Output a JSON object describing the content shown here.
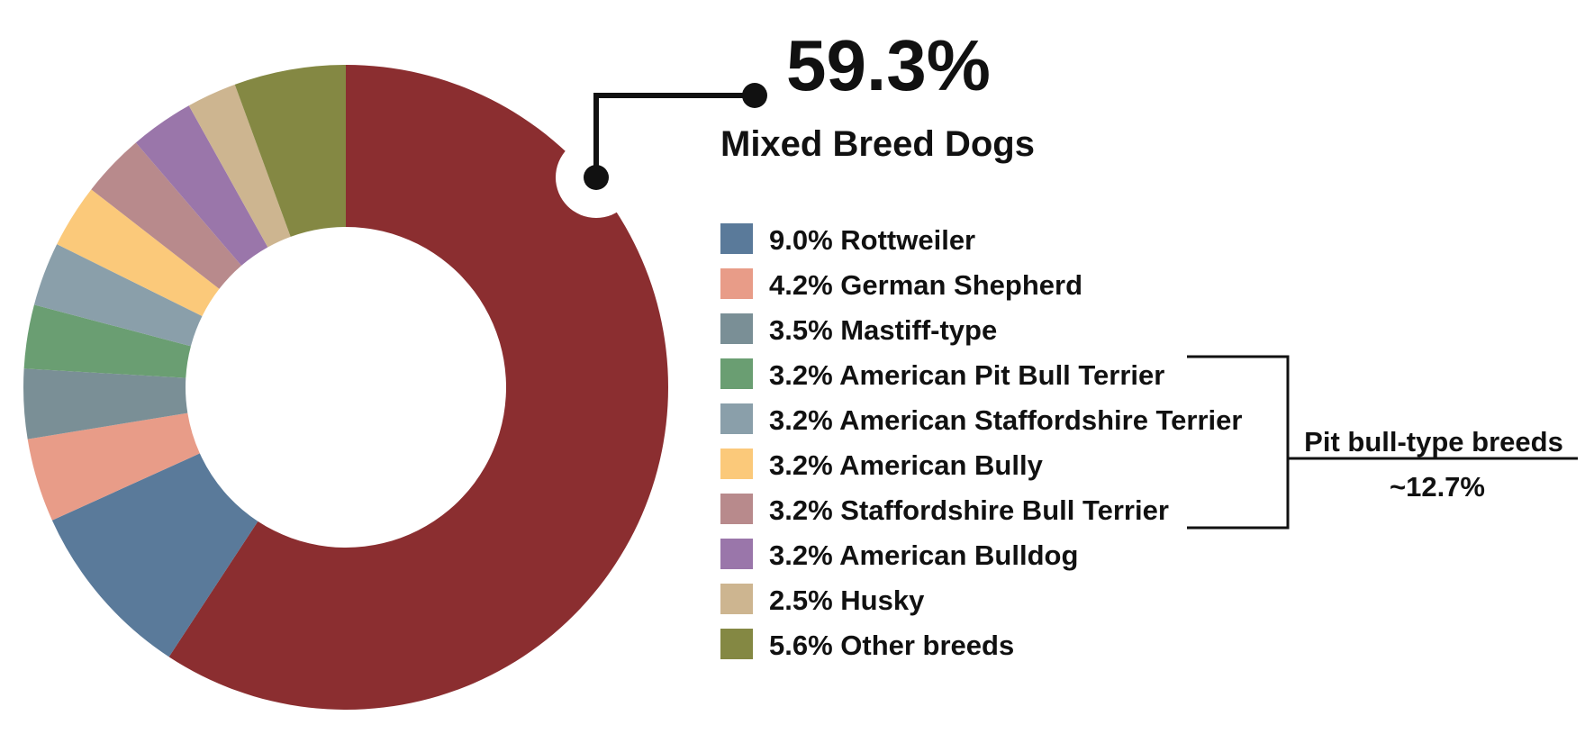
{
  "chart_data": {
    "type": "pie",
    "variant": "donut",
    "start_angle": "12 o'clock",
    "direction": "clockwise",
    "legend_position": "right",
    "slices": [
      {
        "label": "Mixed Breed Dogs",
        "legend_text": "",
        "value": 59.3,
        "color": "#8B2E30"
      },
      {
        "label": "Rottweiler",
        "legend_text": "9.0% Rottweiler",
        "value": 9.0,
        "color": "#5A7A9A"
      },
      {
        "label": "German Shepherd",
        "legend_text": "4.2% German Shepherd",
        "value": 4.2,
        "color": "#E89C88"
      },
      {
        "label": "Mastiff-type",
        "legend_text": "3.5% Mastiff-type",
        "value": 3.5,
        "color": "#7A8F96"
      },
      {
        "label": "American Pit Bull Terrier",
        "legend_text": "3.2% American Pit Bull Terrier",
        "value": 3.2,
        "color": "#6A9E72"
      },
      {
        "label": "American Staffordshire Terrier",
        "legend_text": "3.2% American Staffordshire Terrier",
        "value": 3.2,
        "color": "#8A9FAA"
      },
      {
        "label": "American Bully",
        "legend_text": "3.2% American Bully",
        "value": 3.2,
        "color": "#FBC97A"
      },
      {
        "label": "Staffordshire Bull Terrier",
        "legend_text": "3.2% Staffordshire Bull Terrier",
        "value": 3.2,
        "color": "#B88A8C"
      },
      {
        "label": "American Bulldog",
        "legend_text": "3.2% American Bulldog",
        "value": 3.2,
        "color": "#9A76AA"
      },
      {
        "label": "Husky",
        "legend_text": "2.5% Husky",
        "value": 2.5,
        "color": "#CDB590"
      },
      {
        "label": "Other breeds",
        "legend_text": "5.6% Other breeds",
        "value": 5.6,
        "color": "#848843"
      }
    ],
    "callout": {
      "value_text": "59.3%",
      "label": "Mixed Breed Dogs"
    },
    "group_bracket": {
      "label": "Pit bull-type breeds",
      "value_text": "~12.7%",
      "members": [
        "American Pit Bull Terrier",
        "American Staffordshire Terrier",
        "American Bully",
        "Staffordshire Bull Terrier"
      ]
    }
  }
}
